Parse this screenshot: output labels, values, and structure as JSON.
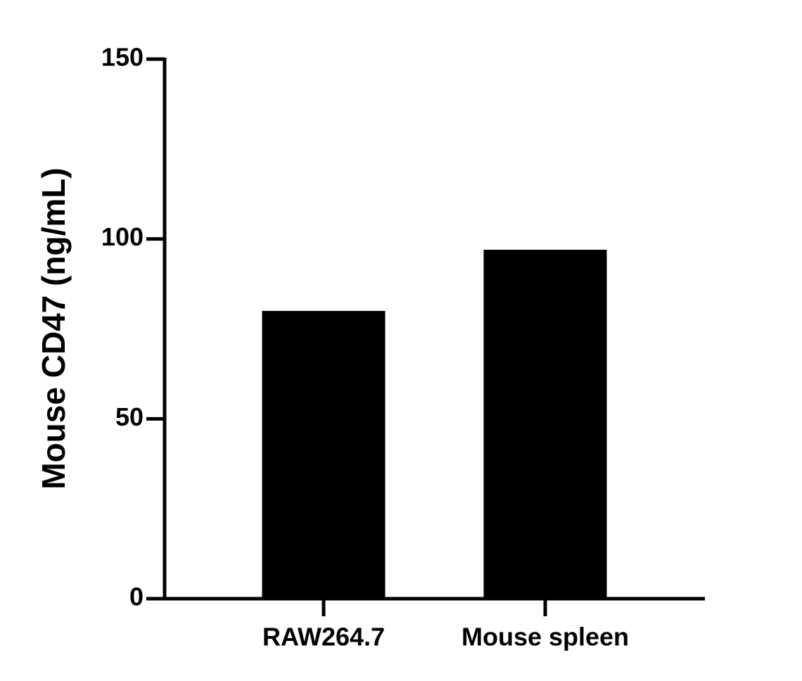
{
  "chart_data": {
    "type": "bar",
    "y_label": "Mouse CD47 (ng/mL)",
    "categories": [
      "RAW264.7",
      "Mouse spleen"
    ],
    "values": [
      80,
      97
    ],
    "color": "#000000",
    "ylim": [
      0,
      150
    ],
    "yticks": [
      0,
      50,
      100,
      150
    ],
    "grid": false
  }
}
